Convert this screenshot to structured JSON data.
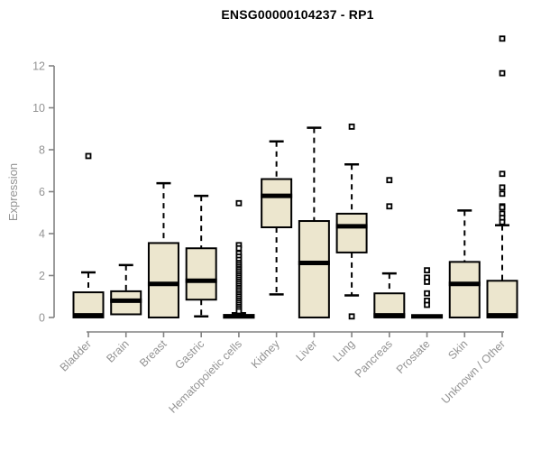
{
  "chart_data": {
    "type": "boxplot",
    "title": "ENSG00000104237 - RP1",
    "ylabel": "Expression",
    "xlabel": "",
    "yticks": [
      0,
      2,
      4,
      6,
      8,
      10,
      12
    ],
    "ylim": [
      -0.69,
      13.42
    ],
    "grid": false,
    "legend": "none",
    "categories": [
      "Bladder",
      "Brain",
      "Breast",
      "Gastric",
      "Hematopoietic cells",
      "Kidney",
      "Liver",
      "Lung",
      "Pancreas",
      "Prostate",
      "Skin",
      "Unknown / Other"
    ],
    "boxes": [
      {
        "label": "Bladder",
        "whisker_low": 0,
        "q1": 0,
        "median": 0.1,
        "q3": 1.2,
        "whisker_high": 2.15,
        "outliers": [
          7.7
        ]
      },
      {
        "label": "Brain",
        "whisker_low": 0.15,
        "q1": 0.15,
        "median": 0.8,
        "q3": 1.25,
        "whisker_high": 2.5,
        "outliers": []
      },
      {
        "label": "Breast",
        "whisker_low": 0,
        "q1": 0,
        "median": 1.6,
        "q3": 3.55,
        "whisker_high": 6.4,
        "outliers": []
      },
      {
        "label": "Gastric",
        "whisker_low": 0.05,
        "q1": 0.85,
        "median": 1.75,
        "q3": 3.3,
        "whisker_high": 5.8,
        "outliers": []
      },
      {
        "label": "Hematopoietic cells",
        "whisker_low": 0,
        "q1": 0,
        "median": 0.05,
        "q3": 0.12,
        "whisker_high": 0.2,
        "outliers": [
          5.45,
          3.45,
          3.3,
          3.05,
          2.9,
          2.75,
          2.6,
          2.5,
          2.4,
          2.3,
          2.2,
          2.1,
          2.0,
          1.9,
          1.8,
          1.7,
          1.6,
          1.5,
          1.4,
          1.3,
          1.2,
          1.1,
          1.0,
          0.9,
          0.8,
          0.7,
          0.6,
          0.5,
          0.4,
          0.3
        ]
      },
      {
        "label": "Kidney",
        "whisker_low": 1.1,
        "q1": 4.3,
        "median": 5.8,
        "q3": 6.6,
        "whisker_high": 8.4,
        "outliers": []
      },
      {
        "label": "Liver",
        "whisker_low": 0,
        "q1": 0,
        "median": 2.6,
        "q3": 4.6,
        "whisker_high": 9.05,
        "outliers": []
      },
      {
        "label": "Lung",
        "whisker_low": 1.05,
        "q1": 3.1,
        "median": 4.35,
        "q3": 4.95,
        "whisker_high": 7.3,
        "outliers": [
          9.1,
          0.05
        ]
      },
      {
        "label": "Pancreas",
        "whisker_low": 0,
        "q1": 0,
        "median": 0.1,
        "q3": 1.15,
        "whisker_high": 2.1,
        "outliers": [
          6.55,
          5.3
        ]
      },
      {
        "label": "Prostate",
        "whisker_low": 0,
        "q1": 0,
        "median": 0.05,
        "q3": 0.1,
        "whisker_high": 0.1,
        "outliers": [
          2.25,
          1.9,
          1.7,
          1.15,
          0.8,
          0.6
        ]
      },
      {
        "label": "Skin",
        "whisker_low": 0,
        "q1": 0,
        "median": 1.6,
        "q3": 2.65,
        "whisker_high": 5.1,
        "outliers": []
      },
      {
        "label": "Unknown / Other",
        "whisker_low": 0,
        "q1": 0,
        "median": 0.1,
        "q3": 1.75,
        "whisker_high": 4.4,
        "outliers": [
          13.3,
          11.65,
          6.85,
          6.2,
          5.9,
          5.3,
          5.25,
          4.95,
          4.75,
          4.55
        ]
      }
    ],
    "style": {
      "box_fill": "#ece6ce",
      "box_border": "#000000",
      "median_color": "#000000",
      "whisker_color": "#000000",
      "axis_color": "#828282",
      "tick_label_color": "#939393",
      "title_color": "#000000",
      "background": "#ffffff"
    }
  }
}
